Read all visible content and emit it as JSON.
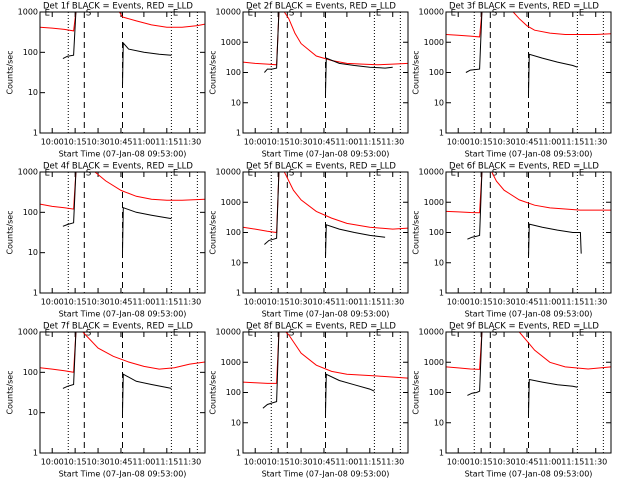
{
  "chart_data": [
    {
      "type": "line",
      "title": "Det 1f BLACK = Events, RED = LLD",
      "xlabel": "Start Time (07-Jan-08 09:53:00)",
      "ylabel": "Counts/sec",
      "log": true,
      "xlim": [
        -8,
        100
      ],
      "xticks": [
        {
          "value": 0,
          "label": "10:00"
        },
        {
          "value": 15,
          "label": "10:15"
        },
        {
          "value": 30,
          "label": "10:30"
        },
        {
          "value": 45,
          "label": "10:45"
        },
        {
          "value": 60,
          "label": "11:00"
        },
        {
          "value": 75,
          "label": "11:15"
        },
        {
          "value": 90,
          "label": "11:30"
        }
      ],
      "ylim": [
        1,
        1000
      ],
      "yticks": [
        1,
        10,
        100,
        1000
      ],
      "series": [
        {
          "color": "#ff0000",
          "x": [
            -8,
            0,
            8,
            14,
            15.5,
            16,
            44,
            46,
            55,
            65,
            75,
            85,
            95,
            100
          ],
          "values": [
            420,
            400,
            370,
            340,
            1000,
            null,
            1000,
            750,
            600,
            480,
            420,
            420,
            460,
            500
          ]
        },
        {
          "color": "#000000",
          "x": [
            7,
            10,
            14,
            15.5,
            16,
            46,
            46.5,
            50,
            60,
            70,
            78
          ],
          "values": [
            70,
            80,
            85,
            1000,
            null,
            15,
            170,
            120,
            100,
            90,
            85
          ]
        }
      ]
    },
    {
      "type": "line",
      "title": "Det 2f BLACK = Events, RED = LLD",
      "xlabel": "Start Time (07-Jan-08 09:53:00)",
      "ylabel": "Counts/sec",
      "log": true,
      "xlim": [
        -8,
        100
      ],
      "xticks": [
        {
          "value": 0,
          "label": "10:00"
        },
        {
          "value": 15,
          "label": "10:15"
        },
        {
          "value": 30,
          "label": "10:30"
        },
        {
          "value": 45,
          "label": "10:45"
        },
        {
          "value": 60,
          "label": "11:00"
        },
        {
          "value": 75,
          "label": "11:15"
        },
        {
          "value": 90,
          "label": "11:30"
        }
      ],
      "ylim": [
        1,
        10000
      ],
      "yticks": [
        1,
        10,
        100,
        1000,
        10000
      ],
      "series": [
        {
          "color": "#ff0000",
          "x": [
            -8,
            0,
            8,
            14,
            15.5,
            16,
            19,
            22,
            26,
            30,
            40,
            50,
            60,
            70,
            80,
            90,
            100
          ],
          "values": [
            220,
            200,
            190,
            180,
            10000,
            null,
            10000,
            6000,
            2000,
            900,
            350,
            250,
            200,
            190,
            180,
            190,
            200
          ]
        },
        {
          "color": "#000000",
          "x": [
            6,
            8,
            11,
            14,
            15.5,
            16,
            46,
            46.5,
            55,
            65,
            75,
            85,
            90
          ],
          "values": [
            100,
            130,
            130,
            140,
            10000,
            null,
            20,
            300,
            200,
            170,
            150,
            140,
            150
          ]
        }
      ]
    },
    {
      "type": "line",
      "title": "Det 3f BLACK = Events, RED = LLD",
      "xlabel": "Start Time (07-Jan-08 09:53:00)",
      "ylabel": "Counts/sec",
      "log": true,
      "xlim": [
        -8,
        100
      ],
      "xticks": [
        {
          "value": 0,
          "label": "10:00"
        },
        {
          "value": 15,
          "label": "10:15"
        },
        {
          "value": 30,
          "label": "10:30"
        },
        {
          "value": 45,
          "label": "10:45"
        },
        {
          "value": 60,
          "label": "11:00"
        },
        {
          "value": 75,
          "label": "11:15"
        },
        {
          "value": 90,
          "label": "11:30"
        }
      ],
      "ylim": [
        1,
        10000
      ],
      "yticks": [
        1,
        10,
        100,
        1000,
        10000
      ],
      "series": [
        {
          "color": "#ff0000",
          "x": [
            -8,
            0,
            8,
            14,
            15.5,
            16,
            36,
            40,
            45,
            50,
            60,
            70,
            80,
            90,
            100
          ],
          "values": [
            1800,
            1700,
            1600,
            1500,
            10000,
            null,
            10000,
            6000,
            3500,
            2500,
            2000,
            1800,
            1800,
            1800,
            1900
          ]
        },
        {
          "color": "#000000",
          "x": [
            5,
            8,
            11,
            14,
            15.5,
            16,
            46,
            46.5,
            55,
            65,
            75,
            78
          ],
          "values": [
            100,
            120,
            125,
            130,
            10000,
            null,
            20,
            400,
            300,
            220,
            170,
            150
          ]
        }
      ]
    },
    {
      "type": "line",
      "title": "Det 4f BLACK = Events, RED = LLD",
      "xlabel": "Start Time (07-Jan-08 09:53:00)",
      "ylabel": "Counts/sec",
      "log": true,
      "xlim": [
        -8,
        100
      ],
      "xticks": [
        {
          "value": 0,
          "label": "10:00"
        },
        {
          "value": 15,
          "label": "10:15"
        },
        {
          "value": 30,
          "label": "10:30"
        },
        {
          "value": 45,
          "label": "10:45"
        },
        {
          "value": 60,
          "label": "11:00"
        },
        {
          "value": 75,
          "label": "11:15"
        },
        {
          "value": 90,
          "label": "11:30"
        }
      ],
      "ylim": [
        1,
        1000
      ],
      "yticks": [
        1,
        10,
        100,
        1000
      ],
      "series": [
        {
          "color": "#ff0000",
          "x": [
            -8,
            0,
            8,
            14,
            15.5,
            16,
            28,
            35,
            45,
            55,
            65,
            75,
            85,
            100
          ],
          "values": [
            160,
            140,
            130,
            120,
            1000,
            null,
            1000,
            600,
            350,
            250,
            210,
            200,
            200,
            210
          ]
        },
        {
          "color": "#000000",
          "x": [
            7,
            10,
            14,
            15.5,
            16,
            46,
            46.5,
            55,
            65,
            78
          ],
          "values": [
            45,
            50,
            55,
            1000,
            null,
            10,
            130,
            100,
            85,
            70
          ]
        }
      ]
    },
    {
      "type": "line",
      "title": "Det 5f BLACK = Events, RED = LLD",
      "xlabel": "Start Time (07-Jan-08 09:53:00)",
      "ylabel": "Counts/sec",
      "log": true,
      "xlim": [
        -8,
        100
      ],
      "xticks": [
        {
          "value": 0,
          "label": "10:00"
        },
        {
          "value": 15,
          "label": "10:15"
        },
        {
          "value": 30,
          "label": "10:30"
        },
        {
          "value": 45,
          "label": "10:45"
        },
        {
          "value": 60,
          "label": "11:00"
        },
        {
          "value": 75,
          "label": "11:15"
        },
        {
          "value": 90,
          "label": "11:30"
        }
      ],
      "ylim": [
        1,
        10000
      ],
      "yticks": [
        1,
        10,
        100,
        1000,
        10000
      ],
      "series": [
        {
          "color": "#ff0000",
          "x": [
            -8,
            0,
            8,
            14,
            15.5,
            16,
            19,
            20,
            25,
            30,
            40,
            50,
            60,
            75,
            90,
            100
          ],
          "values": [
            150,
            130,
            110,
            100,
            10000,
            null,
            10000,
            8000,
            2500,
            1200,
            500,
            300,
            200,
            150,
            130,
            140
          ]
        },
        {
          "color": "#000000",
          "x": [
            6,
            9,
            12,
            14,
            15.5,
            16,
            46,
            46.5,
            55,
            65,
            75,
            85
          ],
          "values": [
            40,
            55,
            60,
            65,
            10000,
            null,
            15,
            180,
            130,
            100,
            80,
            70
          ]
        }
      ]
    },
    {
      "type": "line",
      "title": "Det 6f BLACK = Events, RED = LLD",
      "xlabel": "Start Time (07-Jan-08 09:53:00)",
      "ylabel": "Counts/sec",
      "log": true,
      "xlim": [
        -8,
        100
      ],
      "xticks": [
        {
          "value": 0,
          "label": "10:00"
        },
        {
          "value": 15,
          "label": "10:15"
        },
        {
          "value": 30,
          "label": "10:30"
        },
        {
          "value": 45,
          "label": "10:45"
        },
        {
          "value": 60,
          "label": "11:00"
        },
        {
          "value": 75,
          "label": "11:15"
        },
        {
          "value": 90,
          "label": "11:30"
        }
      ],
      "ylim": [
        1,
        10000
      ],
      "yticks": [
        1,
        10,
        100,
        1000,
        10000
      ],
      "series": [
        {
          "color": "#ff0000",
          "x": [
            -8,
            0,
            8,
            14,
            15.5,
            16,
            22,
            25,
            30,
            40,
            50,
            60,
            80,
            100
          ],
          "values": [
            500,
            480,
            460,
            450,
            10000,
            null,
            10000,
            5000,
            2500,
            1200,
            800,
            650,
            550,
            550
          ]
        },
        {
          "color": "#000000",
          "x": [
            6,
            9,
            12,
            14,
            15.5,
            16,
            46,
            46.5,
            55,
            65,
            75,
            80,
            80.5
          ],
          "values": [
            60,
            70,
            75,
            80,
            10000,
            null,
            15,
            190,
            150,
            120,
            100,
            100,
            20
          ]
        }
      ]
    },
    {
      "type": "line",
      "title": "Det 7f BLACK = Events, RED = LLD",
      "xlabel": "Start Time (07-Jan-08 09:53:00)",
      "ylabel": "Counts/sec",
      "log": true,
      "xlim": [
        -8,
        100
      ],
      "xticks": [
        {
          "value": 0,
          "label": "10:00"
        },
        {
          "value": 15,
          "label": "10:15"
        },
        {
          "value": 30,
          "label": "10:30"
        },
        {
          "value": 45,
          "label": "10:45"
        },
        {
          "value": 60,
          "label": "11:00"
        },
        {
          "value": 75,
          "label": "11:15"
        },
        {
          "value": 90,
          "label": "11:30"
        }
      ],
      "ylim": [
        1,
        1000
      ],
      "yticks": [
        1,
        10,
        100,
        1000
      ],
      "series": [
        {
          "color": "#ff0000",
          "x": [
            -8,
            0,
            8,
            14,
            15.5,
            16,
            20,
            30,
            40,
            50,
            60,
            70,
            80,
            90,
            100
          ],
          "values": [
            130,
            120,
            110,
            100,
            1000,
            null,
            1000,
            400,
            250,
            180,
            140,
            120,
            130,
            160,
            180
          ]
        },
        {
          "color": "#000000",
          "x": [
            7,
            10,
            14,
            15.5,
            16,
            46,
            46.5,
            55,
            65,
            78
          ],
          "values": [
            40,
            45,
            50,
            1000,
            null,
            10,
            90,
            60,
            50,
            40
          ]
        }
      ]
    },
    {
      "type": "line",
      "title": "Det 8f BLACK = Events, RED = LLD",
      "xlabel": "Start Time (07-Jan-08 09:53:00)",
      "ylabel": "Counts/sec",
      "log": true,
      "xlim": [
        -8,
        100
      ],
      "xticks": [
        {
          "value": 0,
          "label": "10:00"
        },
        {
          "value": 15,
          "label": "10:15"
        },
        {
          "value": 30,
          "label": "10:30"
        },
        {
          "value": 45,
          "label": "10:45"
        },
        {
          "value": 60,
          "label": "11:00"
        },
        {
          "value": 75,
          "label": "11:15"
        },
        {
          "value": 90,
          "label": "11:30"
        }
      ],
      "ylim": [
        1,
        10000
      ],
      "yticks": [
        1,
        10,
        100,
        1000,
        10000
      ],
      "series": [
        {
          "color": "#ff0000",
          "x": [
            -8,
            0,
            8,
            14,
            15.5,
            16,
            20,
            22,
            30,
            40,
            50,
            60,
            80,
            100
          ],
          "values": [
            220,
            210,
            200,
            200,
            10000,
            null,
            10000,
            8000,
            2000,
            800,
            500,
            400,
            350,
            300
          ]
        },
        {
          "color": "#000000",
          "x": [
            5,
            8,
            11,
            14,
            15.5,
            16,
            46,
            46.5,
            55,
            65,
            75,
            78
          ],
          "values": [
            30,
            40,
            45,
            50,
            10000,
            null,
            20,
            400,
            250,
            180,
            130,
            110
          ]
        }
      ]
    },
    {
      "type": "line",
      "title": "Det 9f BLACK = Events, RED = LLD",
      "xlabel": "Start Time (07-Jan-08 09:53:00)",
      "ylabel": "Counts/sec",
      "log": true,
      "xlim": [
        -8,
        100
      ],
      "xticks": [
        {
          "value": 0,
          "label": "10:00"
        },
        {
          "value": 15,
          "label": "10:15"
        },
        {
          "value": 30,
          "label": "10:30"
        },
        {
          "value": 45,
          "label": "10:45"
        },
        {
          "value": 60,
          "label": "11:00"
        },
        {
          "value": 75,
          "label": "11:15"
        },
        {
          "value": 90,
          "label": "11:30"
        }
      ],
      "ylim": [
        1,
        10000
      ],
      "yticks": [
        1,
        10,
        100,
        1000,
        10000
      ],
      "series": [
        {
          "color": "#ff0000",
          "x": [
            -8,
            0,
            8,
            14,
            15.5,
            16,
            40,
            45,
            50,
            60,
            70,
            85,
            100
          ],
          "values": [
            700,
            650,
            600,
            580,
            10000,
            null,
            10000,
            5000,
            2500,
            1000,
            700,
            600,
            700
          ]
        },
        {
          "color": "#000000",
          "x": [
            6,
            9,
            12,
            14,
            15.5,
            16,
            46,
            46.5,
            55,
            65,
            75,
            78
          ],
          "values": [
            80,
            95,
            100,
            110,
            10000,
            null,
            20,
            270,
            220,
            180,
            160,
            150
          ]
        }
      ]
    }
  ],
  "vlines": [
    {
      "x": 10.5,
      "style": "dotted"
    },
    {
      "x": 21,
      "style": "dashed"
    },
    {
      "x": 46,
      "style": "dashed"
    },
    {
      "x": 78,
      "style": "dotted"
    },
    {
      "x": 95,
      "style": "dotted"
    }
  ],
  "vline_labels": [
    {
      "x": -5,
      "text": "E"
    },
    {
      "x": 22,
      "text": "S"
    },
    {
      "x": 79,
      "text": "E"
    }
  ]
}
